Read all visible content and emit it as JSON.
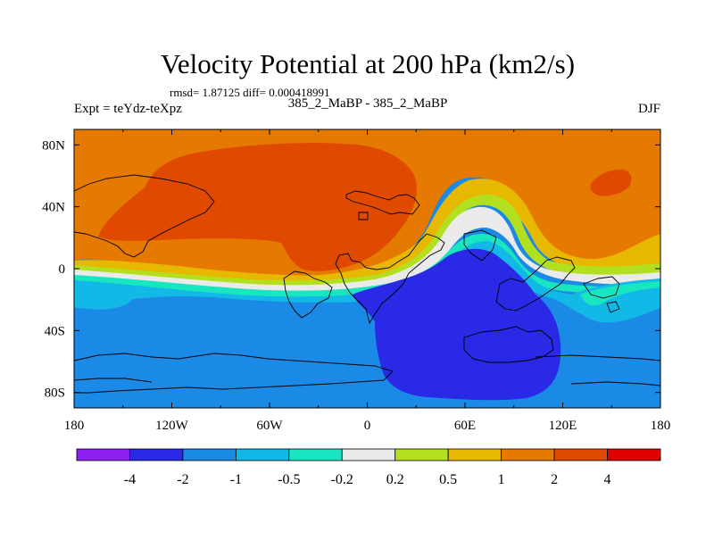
{
  "chart_data": {
    "type": "heatmap",
    "title": "Velocity Potential at 200 hPa (km2/s)",
    "stats_text": "rmsd= 1.87125 diff= 0.000418991",
    "left_label": "Expt = teYdz-teXpz",
    "center_label": "385_2_MaBP - 385_2_MaBP",
    "right_label": "DJF",
    "x_ticks": [
      "180",
      "120W",
      "60W",
      "0",
      "60E",
      "120E",
      "180"
    ],
    "x_tick_values": [
      -180,
      -120,
      -60,
      0,
      60,
      120,
      180
    ],
    "y_ticks": [
      "80N",
      "40N",
      "0",
      "40S",
      "80S"
    ],
    "y_tick_values": [
      80,
      40,
      0,
      -40,
      -80
    ],
    "xlim": [
      -180,
      180
    ],
    "ylim": [
      -90,
      90
    ],
    "grid": false,
    "legend_position": "bottom",
    "colorbar": {
      "levels": [
        "-4",
        "-2",
        "-1",
        "-0.5",
        "-0.2",
        "0.2",
        "0.5",
        "1",
        "2",
        "4"
      ],
      "colors": [
        "#8a1ff0",
        "#2929e6",
        "#1a8ae6",
        "#12b9e6",
        "#18e6c0",
        "#eaeaea",
        "#b3e01e",
        "#e6b800",
        "#e67a00",
        "#e04a00",
        "#e00000"
      ]
    }
  }
}
